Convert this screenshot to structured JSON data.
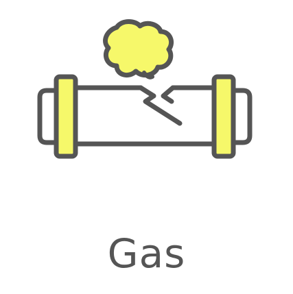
{
  "label": "Gas",
  "colors": {
    "outline": "#555555",
    "accent": "#F6F86A",
    "background": "#FFFFFF",
    "text": "#555555"
  },
  "icon": "gas-leak-pipe-icon"
}
